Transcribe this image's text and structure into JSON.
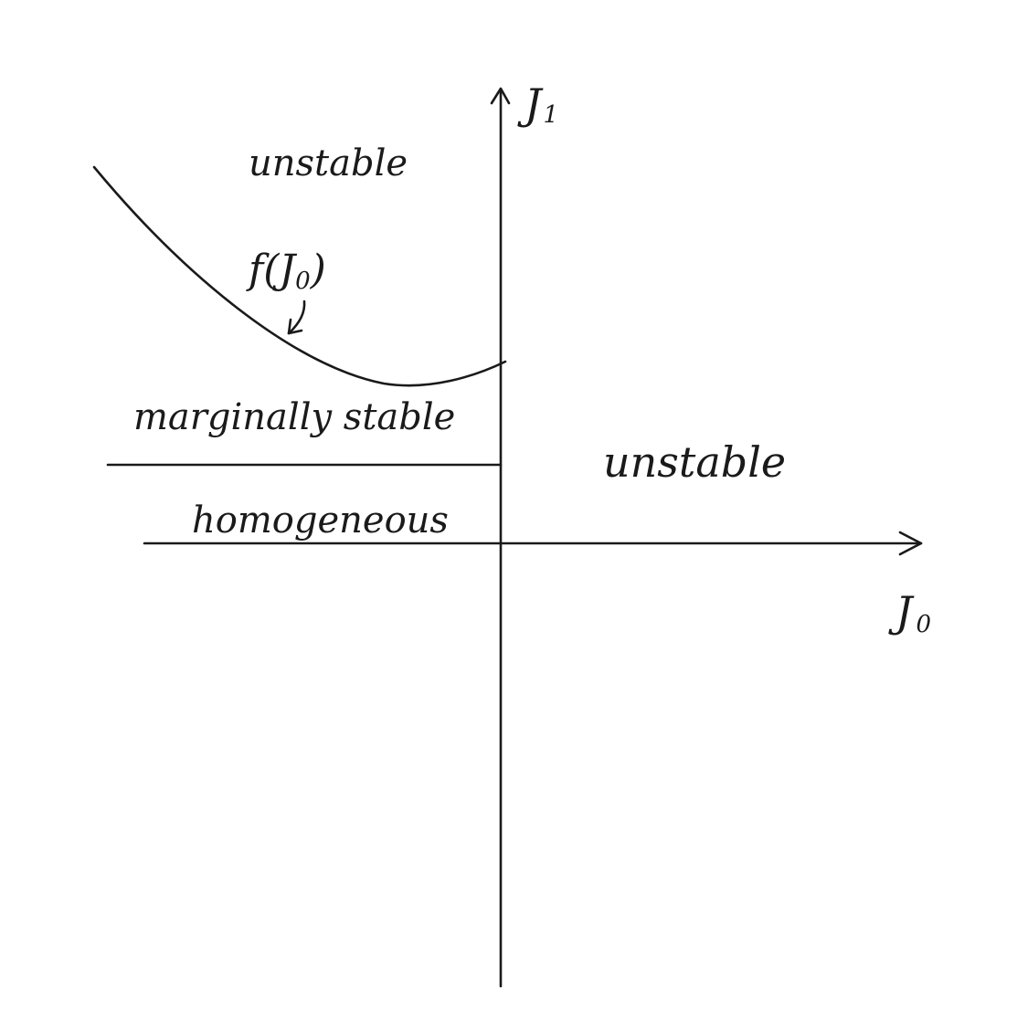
{
  "axes": {
    "y_label_main": "J",
    "y_label_sub": "1",
    "x_label_main": "J",
    "x_label_sub": "0"
  },
  "regions": {
    "top_left": "unstable",
    "middle_left": "marginally stable",
    "bottom_left": "homogeneous",
    "right": "unstable"
  },
  "curve_label": {
    "func": "f",
    "open": "(",
    "var_main": "J",
    "var_sub": "0",
    "close": ")"
  },
  "colors": {
    "ink": "#1a1a1a",
    "background": "#ffffff"
  }
}
